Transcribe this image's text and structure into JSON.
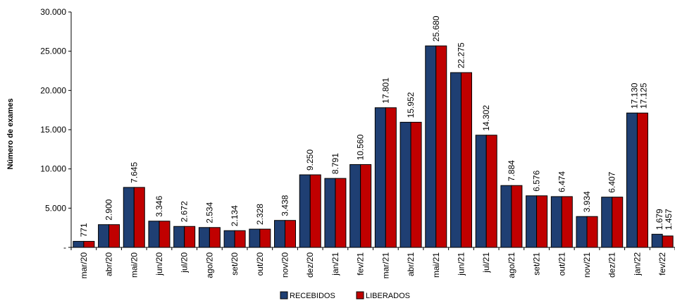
{
  "chart_data": {
    "type": "bar",
    "title": "",
    "xlabel": "",
    "ylabel": "Número de exames",
    "ylim": [
      0,
      30000
    ],
    "yticks": [
      0,
      5000,
      10000,
      15000,
      20000,
      25000,
      30000
    ],
    "ytick_labels": [
      "-",
      "5.000",
      "10.000",
      "15.000",
      "20.000",
      "25.000",
      "30.000"
    ],
    "grid": false,
    "legend_position": "bottom",
    "categories": [
      "mar/20",
      "abr/20",
      "mai/20",
      "jun/20",
      "jul/20",
      "ago/20",
      "set/20",
      "out/20",
      "nov/20",
      "dez/20",
      "jan/21",
      "fev/21",
      "mar/21",
      "abr/21",
      "mai/21",
      "jun/21",
      "jul/21",
      "ago/21",
      "set/21",
      "out/21",
      "nov/21",
      "dez/21",
      "jan/22",
      "fev/22"
    ],
    "series": [
      {
        "name": "RECEBIDOS",
        "color": "#1F3F73",
        "values": [
          771,
          2900,
          7645,
          3346,
          2672,
          2534,
          2134,
          2328,
          3438,
          9250,
          8791,
          10560,
          17801,
          15952,
          25680,
          22275,
          14302,
          7884,
          6576,
          6474,
          3934,
          6407,
          17130,
          1679
        ]
      },
      {
        "name": "LIBERADOS",
        "color": "#C00000",
        "values": [
          771,
          2900,
          7645,
          3346,
          2672,
          2534,
          2134,
          2328,
          3438,
          9250,
          8791,
          10560,
          17801,
          15952,
          25680,
          22275,
          14302,
          7884,
          6576,
          6474,
          3934,
          6407,
          17125,
          1457
        ]
      }
    ],
    "data_labels": [
      "771",
      "2.900",
      "7.645",
      "3.346",
      "2.672",
      "2.534",
      "2.134",
      "2.328",
      "3.438",
      "9.250",
      "8.791",
      "10.560",
      "17.801",
      "15.952",
      "25.680",
      "22.275",
      "14.302",
      "7.884",
      "6.576",
      "6.474",
      "3.934",
      "6.407",
      "17.130",
      "1.679"
    ],
    "data_labels_secondary": {
      "22": "17.125",
      "23": "1.457"
    }
  }
}
